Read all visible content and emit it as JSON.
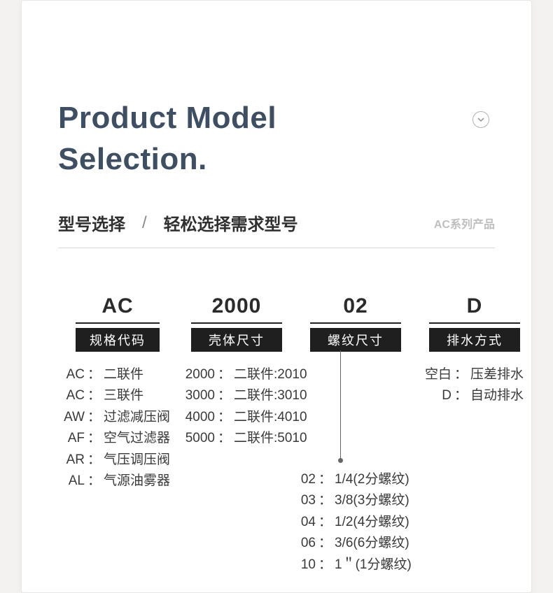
{
  "heading_line1": "Product Model",
  "heading_line2": "Selection.",
  "subtitle_primary": "型号选择",
  "subtitle_slash": "/",
  "subtitle_secondary": "轻松选择需求型号",
  "series_label": "AC系列产品",
  "codes": {
    "c1": {
      "text": "AC",
      "label": "规格代码"
    },
    "c2": {
      "text": "2000",
      "label": "壳体尺寸"
    },
    "c3": {
      "text": "02",
      "label": "螺纹尺寸"
    },
    "c4": {
      "text": "D",
      "label": "排水方式"
    }
  },
  "col1": [
    {
      "k": "AC",
      "v": "二联件"
    },
    {
      "k": "AC",
      "v": "三联件"
    },
    {
      "k": "AW",
      "v": "过滤减压阀"
    },
    {
      "k": "AF",
      "v": "空气过滤器"
    },
    {
      "k": "AR",
      "v": "气压调压阀"
    },
    {
      "k": "AL",
      "v": "气源油雾器"
    }
  ],
  "col2": [
    {
      "k": "2000",
      "v": "二联件:2010"
    },
    {
      "k": "3000",
      "v": "二联件:3010"
    },
    {
      "k": "4000",
      "v": "二联件:4010"
    },
    {
      "k": "5000",
      "v": "二联件:5010"
    }
  ],
  "col3": [
    {
      "k": "02",
      "v": "1/4(2分螺纹)"
    },
    {
      "k": "03",
      "v": "3/8(3分螺纹)"
    },
    {
      "k": "04",
      "v": "1/2(4分螺纹)"
    },
    {
      "k": "06",
      "v": "3/6(6分螺纹)"
    },
    {
      "k": "10",
      "v": "1＂(1分螺纹)"
    }
  ],
  "col4": [
    {
      "k": "空白",
      "v": "压差排水"
    },
    {
      "k": "D",
      "v": "自动排水"
    }
  ],
  "colors": {
    "page_bg": "#f3f2f0",
    "card_bg": "#ffffff",
    "heading": "#3f4f63",
    "badge_bg": "#1f1f1f",
    "text": "#3a3a3a",
    "muted": "#bfbfbf",
    "divider": "#d8d7d5",
    "icon_border": "#aeb1b5"
  }
}
